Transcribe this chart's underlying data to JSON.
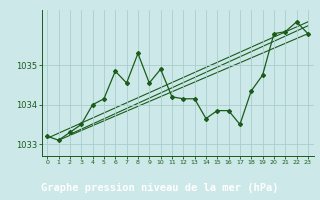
{
  "title": "Graphe pression niveau de la mer (hPa)",
  "background_color": "#cde8e8",
  "label_bg_color": "#2d6e2d",
  "label_text_color": "#ffffff",
  "grid_color": "#a8cece",
  "line_color": "#1a5c1a",
  "xlim": [
    -0.5,
    23.5
  ],
  "ylim": [
    1032.7,
    1036.4
  ],
  "xtick_labels": [
    "0",
    "1",
    "2",
    "3",
    "4",
    "5",
    "6",
    "7",
    "8",
    "9",
    "10",
    "11",
    "12",
    "13",
    "14",
    "15",
    "16",
    "17",
    "18",
    "19",
    "20",
    "21",
    "22",
    "23"
  ],
  "xticks": [
    0,
    1,
    2,
    3,
    4,
    5,
    6,
    7,
    8,
    9,
    10,
    11,
    12,
    13,
    14,
    15,
    16,
    17,
    18,
    19,
    20,
    21,
    22,
    23
  ],
  "yticks": [
    1033,
    1034,
    1035
  ],
  "series_main_x": [
    0,
    1,
    2,
    3,
    4,
    5,
    6,
    7,
    8,
    9,
    10,
    11,
    12,
    13,
    14,
    15,
    16,
    17,
    18,
    19,
    20,
    21,
    22,
    23
  ],
  "series_main_y": [
    1033.2,
    1033.1,
    1033.3,
    1033.5,
    1034.0,
    1034.15,
    1034.85,
    1034.55,
    1035.3,
    1034.55,
    1034.9,
    1034.2,
    1034.15,
    1034.15,
    1033.65,
    1033.85,
    1033.85,
    1033.5,
    1034.35,
    1034.75,
    1035.8,
    1035.85,
    1036.1,
    1035.8
  ],
  "trend1_x": [
    0,
    23
  ],
  "trend1_y": [
    1033.15,
    1036.1
  ],
  "trend2_x": [
    1,
    23
  ],
  "trend2_y": [
    1033.1,
    1035.8
  ],
  "trend3_x": [
    2,
    23
  ],
  "trend3_y": [
    1033.25,
    1036.0
  ]
}
